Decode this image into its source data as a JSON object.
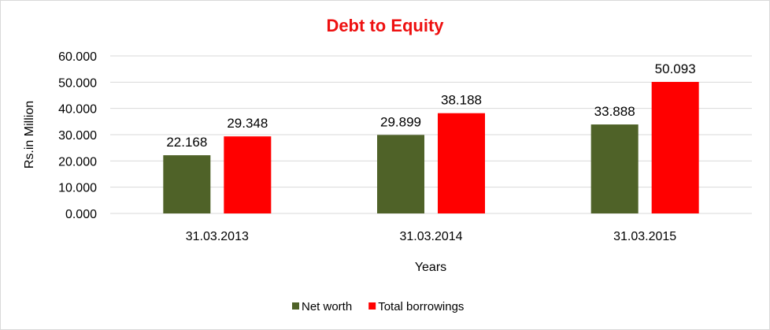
{
  "chart_data": {
    "type": "bar",
    "title": "Debt to Equity",
    "title_color": "#ee1111",
    "xlabel": "Years",
    "ylabel": "Rs.in Million",
    "categories": [
      "31.03.2013",
      "31.03.2014",
      "31.03.2015"
    ],
    "series": [
      {
        "name": "Net worth",
        "color": "#4f6228",
        "values": [
          22.168,
          29.899,
          33.888
        ],
        "labels": [
          "22.168",
          "29.899",
          "33.888"
        ]
      },
      {
        "name": "Total borrowings",
        "color": "#ff0000",
        "values": [
          29.348,
          38.188,
          50.093
        ],
        "labels": [
          "29.348",
          "38.188",
          "50.093"
        ]
      }
    ],
    "ylim": [
      0,
      60
    ],
    "yticks": [
      0,
      10,
      20,
      30,
      40,
      50,
      60
    ],
    "ytick_labels": [
      "0.000",
      "10.000",
      "20.000",
      "30.000",
      "40.000",
      "50.000",
      "60.000"
    ],
    "grid": true,
    "legend_position": "bottom"
  }
}
